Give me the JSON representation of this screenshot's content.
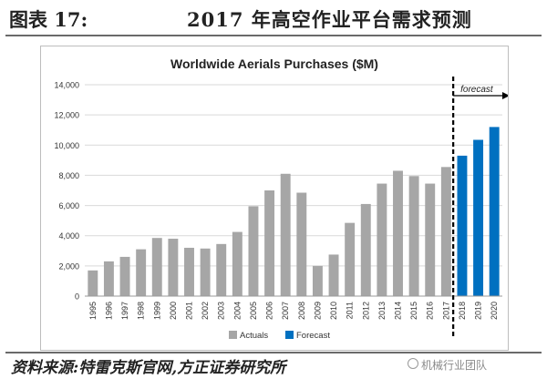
{
  "header": {
    "figure_number": "图表 17:",
    "title": "2017 年高空作业平台需求预测"
  },
  "source_note": "资料来源:特雷克斯官网,方正证券研究所",
  "watermark": "机械行业团队",
  "chart_data": {
    "type": "bar",
    "title": "Worldwide Aerials Purchases ($M)",
    "xlabel": "",
    "ylabel": "",
    "ylim": [
      0,
      14000
    ],
    "yticks": [
      "0",
      "2,000",
      "4,000",
      "6,000",
      "8,000",
      "10,000",
      "12,000",
      "14,000"
    ],
    "grid": true,
    "legend_placement": "bottom",
    "forecast_label": "forecast",
    "categories": [
      "1995",
      "1996",
      "1997",
      "1998",
      "1999",
      "2000",
      "2001",
      "2002",
      "2003",
      "2004",
      "2005",
      "2006",
      "2007",
      "2008",
      "2009",
      "2010",
      "2011",
      "2012",
      "2013",
      "2014",
      "2015",
      "2016",
      "2017",
      "2018",
      "2019",
      "2020"
    ],
    "series": [
      {
        "name": "Actuals",
        "color": "#a6a6a6",
        "values": [
          1700,
          2300,
          2600,
          3100,
          3850,
          3800,
          3200,
          3150,
          3450,
          4250,
          5950,
          7000,
          8100,
          6850,
          2000,
          2750,
          4850,
          6100,
          7450,
          8300,
          7950,
          7450,
          8550,
          null,
          null,
          null
        ]
      },
      {
        "name": "Forecast",
        "color": "#0070c0",
        "values": [
          null,
          null,
          null,
          null,
          null,
          null,
          null,
          null,
          null,
          null,
          null,
          null,
          null,
          null,
          null,
          null,
          null,
          null,
          null,
          null,
          null,
          null,
          null,
          9300,
          10350,
          11200
        ]
      }
    ]
  }
}
